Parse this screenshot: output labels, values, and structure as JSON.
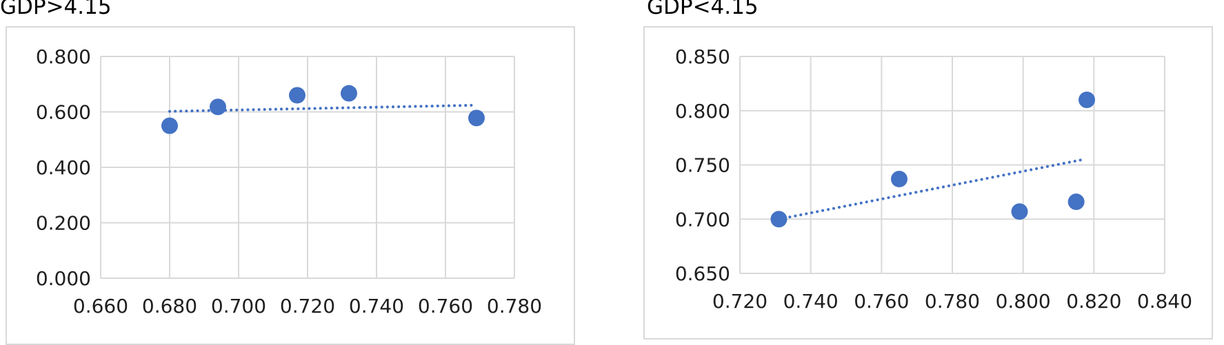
{
  "chart_data": [
    {
      "type": "scatter",
      "title": "GDP>4.15",
      "xlabel": "",
      "ylabel": "",
      "xlim": [
        0.66,
        0.78
      ],
      "ylim": [
        0.0,
        0.8
      ],
      "x_ticks": [
        "0.660",
        "0.680",
        "0.700",
        "0.720",
        "0.740",
        "0.760",
        "0.780"
      ],
      "y_ticks": [
        "0.000",
        "0.200",
        "0.400",
        "0.600",
        "0.800"
      ],
      "grid": true,
      "points": [
        {
          "x": 0.68,
          "y": 0.55
        },
        {
          "x": 0.694,
          "y": 0.618
        },
        {
          "x": 0.717,
          "y": 0.66
        },
        {
          "x": 0.732,
          "y": 0.667
        },
        {
          "x": 0.769,
          "y": 0.578
        }
      ],
      "trendline": {
        "style": "dotted",
        "x": [
          0.68,
          0.768
        ],
        "y": [
          0.602,
          0.624
        ]
      }
    },
    {
      "type": "scatter",
      "title": "GDP<4.15",
      "xlabel": "",
      "ylabel": "",
      "xlim": [
        0.72,
        0.84
      ],
      "ylim": [
        0.65,
        0.85
      ],
      "x_ticks": [
        "0.720",
        "0.740",
        "0.760",
        "0.780",
        "0.800",
        "0.820",
        "0.840"
      ],
      "y_ticks": [
        "0.650",
        "0.700",
        "0.750",
        "0.800",
        "0.850"
      ],
      "grid": true,
      "points": [
        {
          "x": 0.731,
          "y": 0.7
        },
        {
          "x": 0.765,
          "y": 0.737
        },
        {
          "x": 0.799,
          "y": 0.707
        },
        {
          "x": 0.815,
          "y": 0.716
        },
        {
          "x": 0.818,
          "y": 0.81
        }
      ],
      "trendline": {
        "style": "dotted",
        "x": [
          0.731,
          0.817
        ],
        "y": [
          0.7,
          0.755
        ]
      }
    }
  ],
  "colors": {
    "marker": "#4472c4",
    "trendline": "#4472c4",
    "grid": "#d9d9d9",
    "frame": "#d9d9d9"
  }
}
